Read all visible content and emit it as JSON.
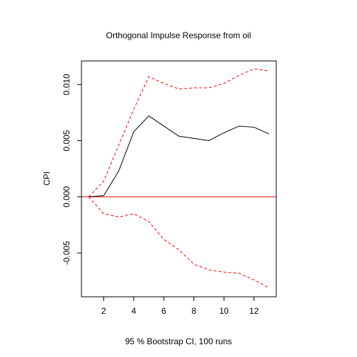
{
  "chart_data": {
    "type": "line",
    "title": "Orthogonal Impulse Response from oil",
    "xlabel": "95 % Bootstrap CI,  100 runs",
    "ylabel": "CPI",
    "xlim": [
      0.52,
      13.48
    ],
    "ylim": [
      -0.0089,
      0.0121
    ],
    "x_ticks": [
      2,
      4,
      6,
      8,
      10,
      12
    ],
    "y_ticks": [
      -0.005,
      0.0,
      0.005,
      0.01
    ],
    "y_tick_labels": [
      "-0.005",
      "0.000",
      "0.005",
      "0.010"
    ],
    "x": [
      1,
      2,
      3,
      4,
      5,
      6,
      7,
      8,
      9,
      10,
      11,
      12,
      13
    ],
    "series": [
      {
        "role": "response",
        "color": "#000000",
        "style": "solid",
        "values": [
          0.0,
          0.0001,
          0.0023,
          0.0058,
          0.0072,
          0.0063,
          0.0054,
          0.0052,
          0.005,
          0.0057,
          0.0063,
          0.0062,
          0.0056
        ]
      },
      {
        "role": "upper-ci",
        "color": "#ff0000",
        "style": "dashed",
        "values": [
          0.0,
          0.0014,
          0.0046,
          0.0078,
          0.0107,
          0.0101,
          0.0096,
          0.0097,
          0.0097,
          0.0101,
          0.0108,
          0.0114,
          0.0112
        ]
      },
      {
        "role": "lower-ci",
        "color": "#ff0000",
        "style": "dashed",
        "values": [
          0.0,
          -0.0015,
          -0.0018,
          -0.0015,
          -0.0022,
          -0.0038,
          -0.0047,
          -0.006,
          -0.0065,
          -0.0067,
          -0.0068,
          -0.0074,
          -0.0081
        ]
      }
    ],
    "reference_line": {
      "y": 0.0,
      "color": "#ff0000"
    },
    "grid": false,
    "legend": "none"
  }
}
